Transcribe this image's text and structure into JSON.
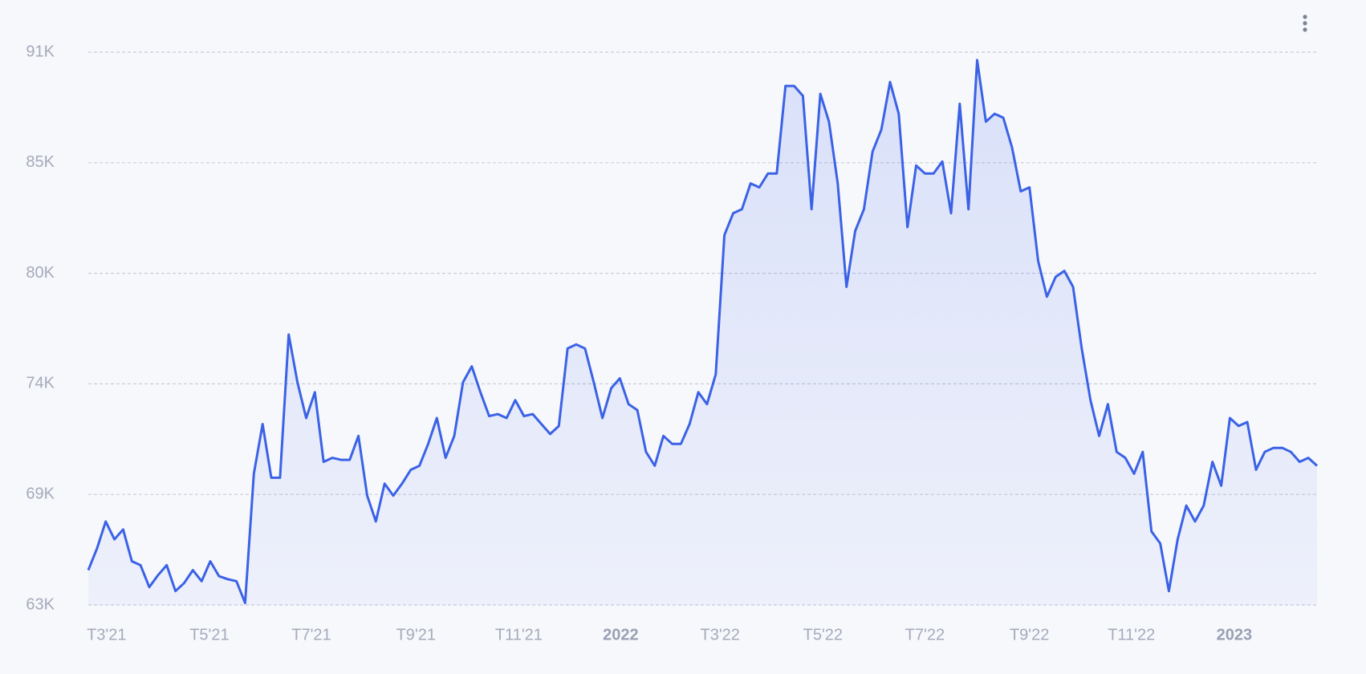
{
  "chart_data": {
    "type": "area",
    "xlim": [
      0,
      141
    ],
    "xticks": [
      {
        "value": 2.1,
        "label": "T3'21"
      },
      {
        "value": 13.9,
        "label": "T5'21"
      },
      {
        "value": 25.6,
        "label": "T7'21"
      },
      {
        "value": 37.6,
        "label": "T9'21"
      },
      {
        "value": 49.4,
        "label": "T11'21"
      },
      {
        "value": 61.1,
        "label": "2022"
      },
      {
        "value": 72.5,
        "label": "T3'22"
      },
      {
        "value": 84.3,
        "label": "T5'22"
      },
      {
        "value": 96,
        "label": "T7'22"
      },
      {
        "value": 108,
        "label": "T9'22"
      },
      {
        "value": 119.7,
        "label": "T11'22"
      },
      {
        "value": 131.5,
        "label": "2023"
      }
    ],
    "ylim": [
      63000,
      90800
    ],
    "yticks": [
      {
        "value": 63000,
        "label": "63K"
      },
      {
        "value": 68560,
        "label": "69K"
      },
      {
        "value": 74120,
        "label": "74K"
      },
      {
        "value": 79680,
        "label": "80K"
      },
      {
        "value": 85240,
        "label": "85K"
      },
      {
        "value": 90800,
        "label": "91K"
      }
    ],
    "grid": true,
    "color": "#3b62e6",
    "values": [
      64750,
      65850,
      67200,
      66300,
      66800,
      65200,
      65000,
      63900,
      64500,
      65000,
      63700,
      64100,
      64750,
      64200,
      65200,
      64450,
      64300,
      64200,
      63100,
      69600,
      72100,
      69400,
      69400,
      76600,
      74200,
      72400,
      73700,
      70200,
      70400,
      70300,
      70300,
      71500,
      68500,
      67200,
      69100,
      68500,
      69100,
      69800,
      70000,
      71100,
      72400,
      70400,
      71500,
      74200,
      75000,
      73700,
      72500,
      72600,
      72400,
      73300,
      72500,
      72600,
      72100,
      71600,
      72000,
      75900,
      76100,
      75900,
      74200,
      72400,
      73900,
      74400,
      73100,
      72800,
      70700,
      70000,
      71500,
      71100,
      71100,
      72100,
      73700,
      73100,
      74600,
      81600,
      82700,
      82900,
      84200,
      84000,
      84700,
      84700,
      89100,
      89100,
      88600,
      82900,
      88700,
      87300,
      84200,
      79000,
      81800,
      82900,
      85800,
      86900,
      89300,
      87700,
      82000,
      85100,
      84700,
      84700,
      85300,
      82700,
      88200,
      82900,
      90400,
      87300,
      87700,
      87500,
      86000,
      83800,
      84000,
      80300,
      78500,
      79500,
      79800,
      79000,
      75900,
      73300,
      71500,
      73100,
      70700,
      70400,
      69600,
      70700,
      66700,
      66100,
      63700,
      66300,
      68000,
      67200,
      68000,
      70200,
      69000,
      72400,
      72000,
      72200,
      69800,
      70700,
      70900,
      70900,
      70700,
      70200,
      70400,
      70000
    ]
  }
}
